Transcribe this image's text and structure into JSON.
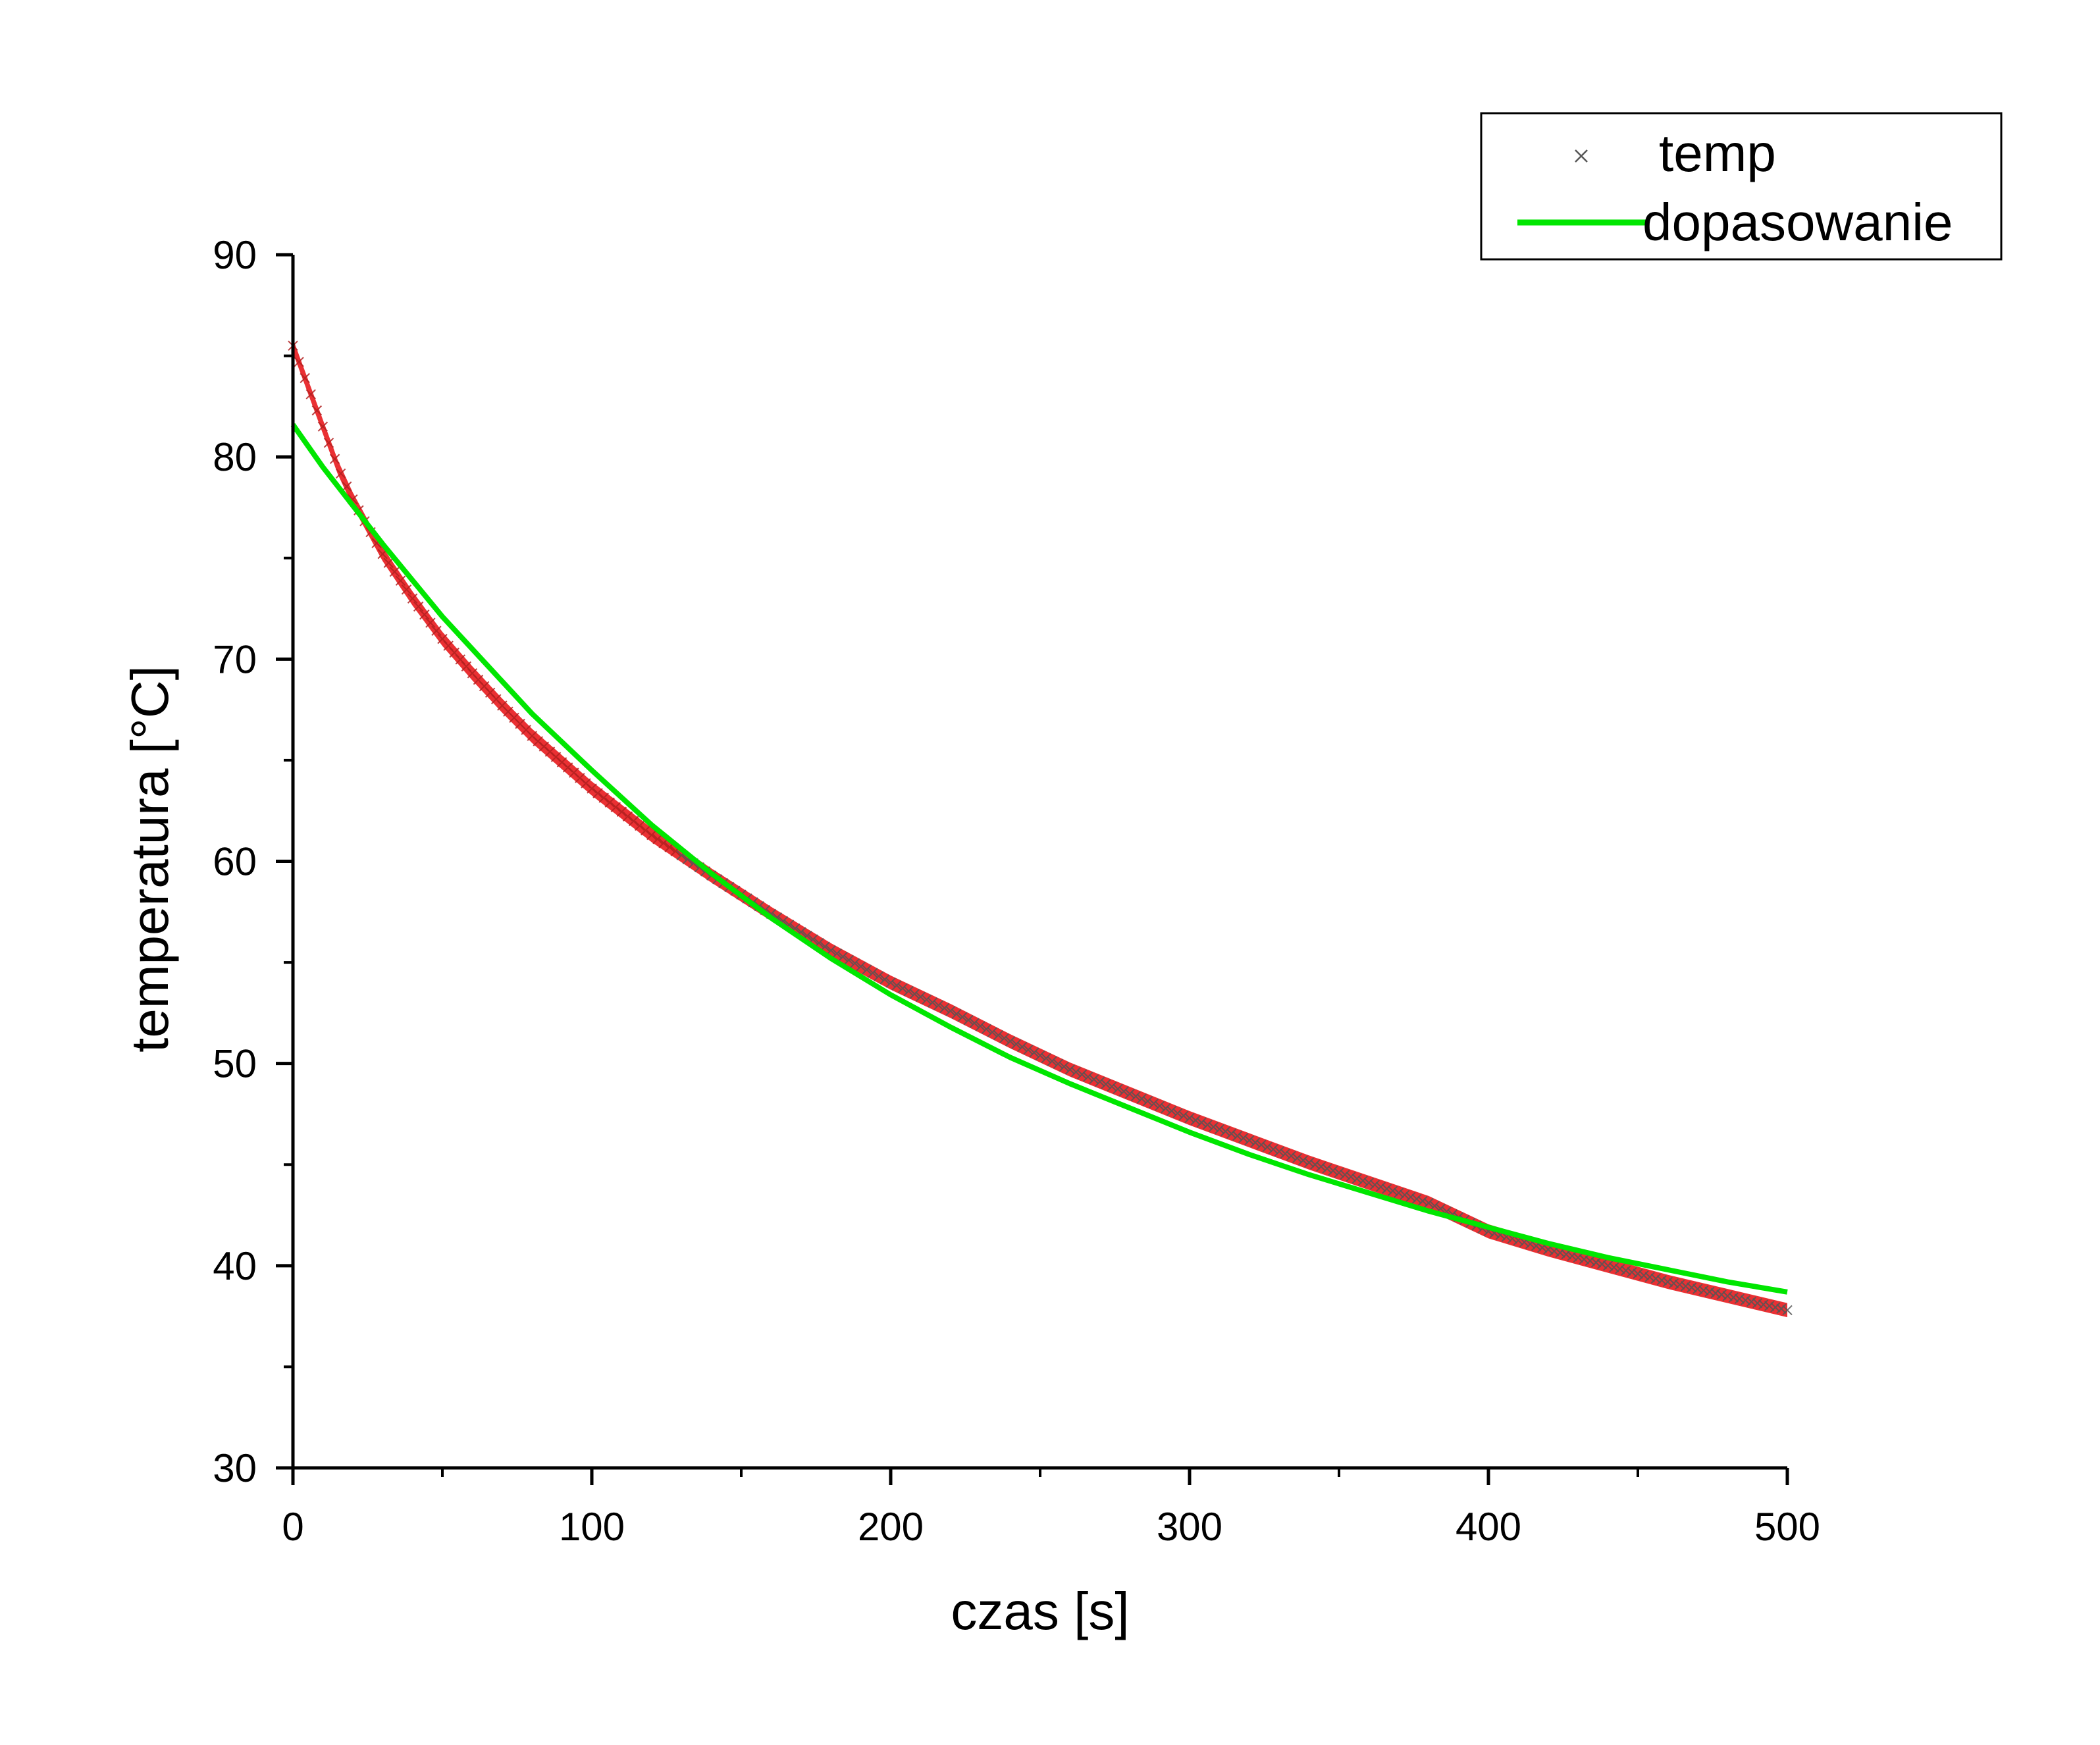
{
  "chart_data": {
    "type": "scatter",
    "xlabel": "czas [s]",
    "ylabel": "temperatura [°C]",
    "xlim": [
      0,
      500
    ],
    "ylim": [
      30,
      90
    ],
    "x_ticks": [
      0,
      100,
      200,
      300,
      400,
      500
    ],
    "y_ticks": [
      30,
      40,
      50,
      60,
      70,
      80,
      90
    ],
    "x_tick_labels": [
      "0",
      "100",
      "200",
      "300",
      "400",
      "500"
    ],
    "y_tick_labels": [
      "30",
      "40",
      "50",
      "60",
      "70",
      "80",
      "90"
    ],
    "grid": false,
    "legend_position": "top-right",
    "series": [
      {
        "name": "temp",
        "type": "scatter",
        "marker": "x",
        "color": "#555555",
        "error_color": "#e8191d",
        "x": [
          0,
          5,
          10,
          15,
          20,
          30,
          40,
          50,
          60,
          70,
          80,
          90,
          100,
          120,
          140,
          160,
          180,
          200,
          220,
          240,
          260,
          280,
          300,
          320,
          340,
          360,
          380,
          400,
          420,
          440,
          460,
          480,
          500
        ],
        "y": [
          85.5,
          83.5,
          81.5,
          79.5,
          77.9,
          75.2,
          73.0,
          71.0,
          69.3,
          67.7,
          66.2,
          64.9,
          63.6,
          61.3,
          59.3,
          57.4,
          55.6,
          54.0,
          52.6,
          51.1,
          49.7,
          48.5,
          47.3,
          46.2,
          45.1,
          44.1,
          43.1,
          41.7,
          40.8,
          40.0,
          39.2,
          38.5,
          37.8
        ]
      },
      {
        "name": "dopasowanie",
        "type": "line",
        "color": "#00e600",
        "x": [
          0,
          10,
          20,
          30,
          40,
          50,
          60,
          70,
          80,
          90,
          100,
          120,
          140,
          160,
          180,
          200,
          220,
          240,
          260,
          280,
          300,
          320,
          340,
          360,
          380,
          400,
          420,
          440,
          460,
          480,
          500
        ],
        "y": [
          81.6,
          79.5,
          77.6,
          75.7,
          73.9,
          72.1,
          70.5,
          68.9,
          67.3,
          65.9,
          64.5,
          61.8,
          59.4,
          57.2,
          55.2,
          53.4,
          51.8,
          50.3,
          49.0,
          47.8,
          46.6,
          45.5,
          44.5,
          43.6,
          42.7,
          41.9,
          41.1,
          40.4,
          39.8,
          39.2,
          38.7
        ]
      }
    ]
  }
}
